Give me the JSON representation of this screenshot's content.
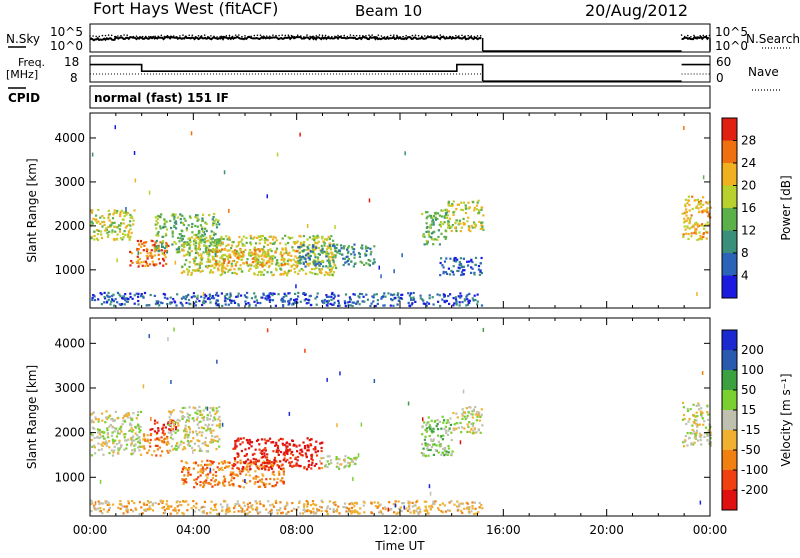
{
  "header": {
    "station": "Fort Hays West (fitACF)",
    "beam": "Beam 10",
    "date": "20/Aug/2012"
  },
  "param_strips": {
    "nsky_label": "N.Sky",
    "nsky_ticks": [
      "10^5",
      "10^0"
    ],
    "nsearch_label": "N.Search",
    "nsearch_ticks": [
      "10^5",
      "10^0"
    ],
    "freq_label": "Freq.",
    "freq_unit": "[MHz]",
    "freq_ticks": [
      "18",
      "8"
    ],
    "nave_label": "Nave",
    "nave_ticks": [
      "60",
      "0"
    ],
    "cpid_label": "CPID",
    "cpid_value": "normal (fast) 151 IF",
    "freq_series": [
      {
        "start": 0.0,
        "end": 2.0,
        "mhz": 15
      },
      {
        "start": 2.0,
        "end": 14.2,
        "mhz": 12
      },
      {
        "start": 14.2,
        "end": 15.2,
        "mhz": 15
      },
      {
        "start": 22.9,
        "end": 24.0,
        "mhz": 15
      }
    ],
    "data_gaps": [
      [
        15.2,
        22.9
      ]
    ]
  },
  "chart_data": [
    {
      "type": "heatmap",
      "name": "power",
      "ylabel": "Slant Range [km]",
      "yticks": [
        1000,
        2000,
        3000,
        4000
      ],
      "ylim": [
        200,
        4500
      ],
      "xlim": [
        0,
        24
      ],
      "colorbar": {
        "label": "Power [dB]",
        "ticks": [
          "4",
          "8",
          "12",
          "16",
          "20",
          "24",
          "28"
        ],
        "colors": [
          "#1a1ae0",
          "#2a63b8",
          "#3a8f7a",
          "#5cb04a",
          "#b8d12c",
          "#f0b020",
          "#f07010",
          "#e02010"
        ]
      },
      "scatter_regions": [
        {
          "t0": 0.0,
          "t1": 1.7,
          "r0": 1700,
          "r1": 2400,
          "level": 4
        },
        {
          "t0": 1.5,
          "t1": 3.0,
          "r0": 1100,
          "r1": 1700,
          "level": 6
        },
        {
          "t0": 2.5,
          "t1": 5.0,
          "r0": 1400,
          "r1": 2300,
          "level": 3
        },
        {
          "t0": 3.5,
          "t1": 9.5,
          "r0": 900,
          "r1": 1800,
          "level": 4
        },
        {
          "t0": 4.5,
          "t1": 8.0,
          "r0": 1100,
          "r1": 1500,
          "level": 5
        },
        {
          "t0": 8.0,
          "t1": 11.0,
          "r0": 1100,
          "r1": 1600,
          "level": 2
        },
        {
          "t0": 0.0,
          "t1": 15.2,
          "r0": 200,
          "r1": 500,
          "level": 1
        },
        {
          "t0": 12.8,
          "t1": 13.8,
          "r0": 1600,
          "r1": 2400,
          "level": 3
        },
        {
          "t0": 13.8,
          "t1": 15.2,
          "r0": 1900,
          "r1": 2600,
          "level": 4
        },
        {
          "t0": 13.5,
          "t1": 15.2,
          "r0": 900,
          "r1": 1300,
          "level": 1
        },
        {
          "t0": 22.9,
          "t1": 24.0,
          "r0": 1700,
          "r1": 2700,
          "level": 5
        }
      ]
    },
    {
      "type": "heatmap",
      "name": "velocity",
      "ylabel": "Slant Range [km]",
      "yticks": [
        1000,
        2000,
        3000,
        4000
      ],
      "ylim": [
        200,
        4500
      ],
      "xlim": [
        0,
        24
      ],
      "xlabel": "Time UT",
      "xticks": [
        "00:00",
        "04:00",
        "08:00",
        "12:00",
        "16:00",
        "20:00",
        "00:00"
      ],
      "colorbar": {
        "label": "Velocity [m s⁻¹]",
        "ticks": [
          "200",
          "100",
          "50",
          "15",
          "-15",
          "-50",
          "-100",
          "-200"
        ],
        "colors": [
          "#1a2ad0",
          "#2a5ab0",
          "#3aa040",
          "#7ad030",
          "#c0c0b0",
          "#f0b030",
          "#f08010",
          "#f04010",
          "#e01010"
        ]
      },
      "scatter_regions": [
        {
          "t0": 0.0,
          "t1": 2.0,
          "r0": 1500,
          "r1": 2500,
          "level": 4
        },
        {
          "t0": 2.0,
          "t1": 3.0,
          "r0": 1500,
          "r1": 2000,
          "level": 6
        },
        {
          "t0": 2.3,
          "t1": 3.3,
          "r0": 2000,
          "r1": 2300,
          "level": 8
        },
        {
          "t0": 3.0,
          "t1": 5.0,
          "r0": 1600,
          "r1": 2600,
          "level": 4
        },
        {
          "t0": 3.5,
          "t1": 7.5,
          "r0": 800,
          "r1": 1400,
          "level": 6
        },
        {
          "t0": 5.5,
          "t1": 9.0,
          "r0": 1200,
          "r1": 1900,
          "level": 8
        },
        {
          "t0": 8.8,
          "t1": 10.3,
          "r0": 1200,
          "r1": 1500,
          "level": 4
        },
        {
          "t0": 0.0,
          "t1": 15.2,
          "r0": 200,
          "r1": 500,
          "level": 5
        },
        {
          "t0": 12.8,
          "t1": 14.0,
          "r0": 1500,
          "r1": 2400,
          "level": 3
        },
        {
          "t0": 14.0,
          "t1": 15.2,
          "r0": 2000,
          "r1": 2600,
          "level": 4
        },
        {
          "t0": 22.9,
          "t1": 24.0,
          "r0": 1700,
          "r1": 2700,
          "level": 4
        }
      ]
    }
  ]
}
